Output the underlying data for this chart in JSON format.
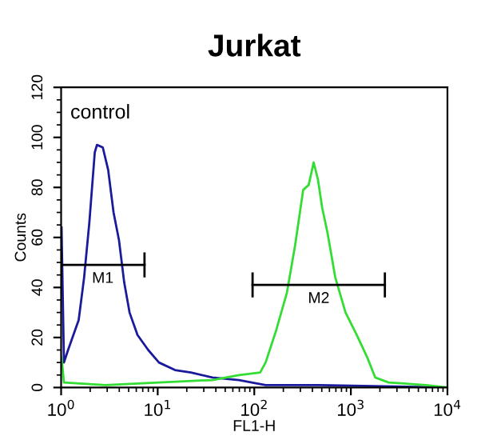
{
  "chart_data": {
    "type": "line",
    "title": "Jurkat",
    "xlabel": "FL1-H",
    "ylabel": "Counts",
    "log": "x",
    "xlim": [
      1,
      10000
    ],
    "ylim": [
      0,
      120
    ],
    "xticks": [
      {
        "value": 1,
        "label": "10$^{0}$"
      },
      {
        "value": 10,
        "label": "10$^{1}$"
      },
      {
        "value": 100,
        "label": "10$^{2}$"
      },
      {
        "value": 1000,
        "label": "10$^{3}$"
      },
      {
        "value": 10000,
        "label": "10$^{4}$"
      }
    ],
    "yticks": [
      0,
      20,
      40,
      60,
      80,
      100,
      120
    ],
    "grid": false,
    "legend": false,
    "marker": "none",
    "line_style": "solid",
    "series": [
      {
        "name": "control",
        "color": "#1a1a9c",
        "x": [
          1.01,
          1.07,
          1.18,
          1.52,
          1.73,
          1.96,
          2.23,
          2.35,
          2.7,
          3.07,
          3.49,
          3.97,
          4.5,
          5.11,
          6.18,
          7.98,
          10.3,
          15.1,
          22.1,
          36.8,
          69.5,
          131,
          470,
          10000
        ],
        "values": [
          64,
          10,
          15,
          27,
          44,
          66,
          94,
          97,
          96,
          87,
          70,
          59,
          42,
          30,
          21,
          15,
          10,
          7,
          6,
          4,
          3,
          1,
          1,
          0
        ]
      },
      {
        "color": "#33dd33",
        "x": [
          1.01,
          1.07,
          2.88,
          10.3,
          36.8,
          69.5,
          115,
          131,
          169,
          218,
          265,
          321,
          366,
          412,
          457,
          504,
          572,
          690,
          881,
          1150,
          1480,
          1790,
          2460,
          6010,
          10000
        ],
        "values": [
          12,
          2,
          1,
          2,
          3,
          5,
          6,
          10,
          23,
          38,
          57,
          79,
          81,
          90,
          83,
          72,
          62,
          44,
          30,
          21,
          12,
          4,
          2,
          1,
          0
        ]
      },
      {
        "color": "#000000",
        "x": [
          1.0,
          7.3
        ],
        "values": [
          49,
          49
        ],
        "errors": [
          5,
          5
        ]
      },
      {
        "color": "#000000",
        "x": [
          96,
          2250
        ],
        "values": [
          41,
          41
        ],
        "errors": [
          5,
          5
        ]
      }
    ],
    "annotations": [
      {
        "text": "M1",
        "x": 2.7,
        "y": 49
      },
      {
        "text": "M2",
        "x": 465,
        "y": 41
      }
    ]
  }
}
